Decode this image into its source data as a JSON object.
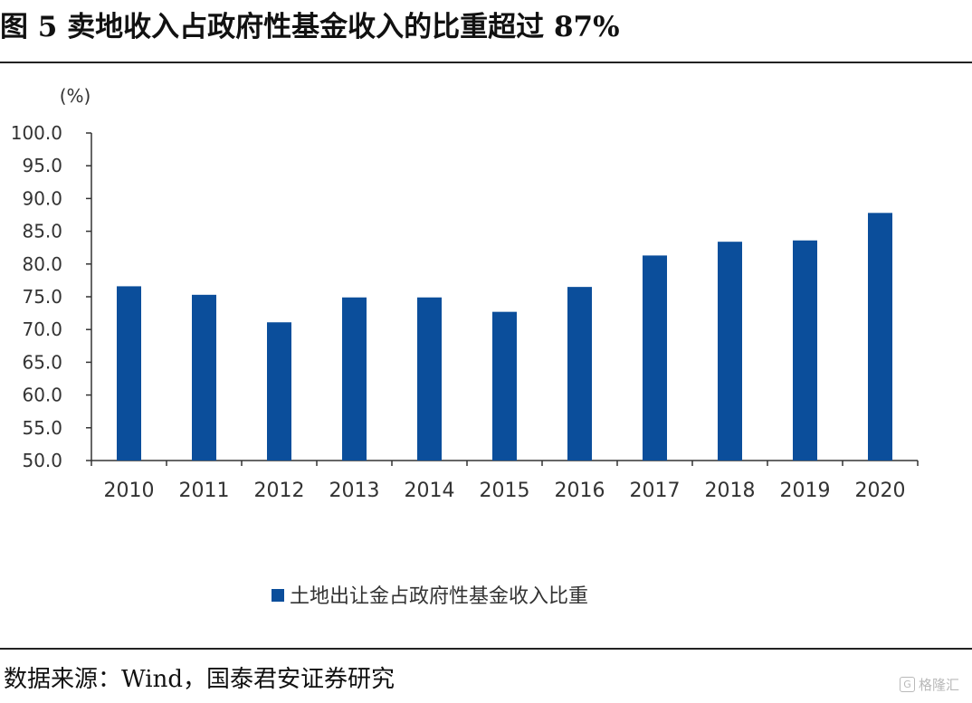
{
  "figure": {
    "title": "图 5 卖地收入占政府性基金收入的比重超过 87%",
    "source": "数据来源：Wind，国泰君安证券研究",
    "watermark": "格隆汇",
    "watermark_icon": "g-logo-icon"
  },
  "chart_data": {
    "type": "bar",
    "ylabel": "(%)",
    "ylim": [
      50,
      100
    ],
    "yticks": [
      "100.0",
      "95.0",
      "90.0",
      "85.0",
      "80.0",
      "75.0",
      "70.0",
      "65.0",
      "60.0",
      "55.0",
      "50.0"
    ],
    "categories": [
      "2010",
      "2011",
      "2012",
      "2013",
      "2014",
      "2015",
      "2016",
      "2017",
      "2018",
      "2019",
      "2020"
    ],
    "series": [
      {
        "name": "土地出让金占政府性基金收入比重",
        "values": [
          76.6,
          75.3,
          71.1,
          74.9,
          74.9,
          72.7,
          76.5,
          81.3,
          83.4,
          83.6,
          87.8
        ],
        "color": "#0b4e9b"
      }
    ],
    "grid": false,
    "legend_position": "bottom-center"
  }
}
